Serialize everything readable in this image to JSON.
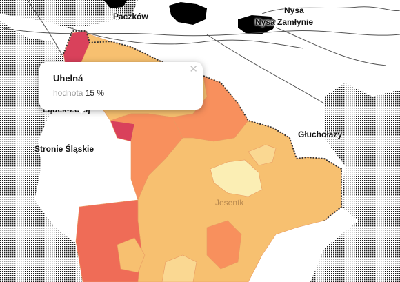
{
  "map": {
    "colors": {
      "land": "#ffffff",
      "hatch": "#1c1c1c",
      "water": "#000000",
      "low": "#fbeeb4",
      "medium_low": "#fad892",
      "medium": "#f7c070",
      "medium_high": "#f8905d",
      "high": "#ef6c57",
      "very_high": "#d9415b",
      "border": "#333333"
    },
    "places": [
      {
        "name": "Paczków",
        "kind": "city"
      },
      {
        "name": "Nysa",
        "kind": "city"
      },
      {
        "name": "Nysa Zamłynie",
        "kind": "city"
      },
      {
        "name": "Lądek-Zdrój",
        "kind": "city"
      },
      {
        "name": "Stronie Śląskie",
        "kind": "city"
      },
      {
        "name": "Głuchołazy",
        "kind": "city"
      },
      {
        "name": "Jeseník",
        "kind": "town"
      }
    ]
  },
  "popup": {
    "title": "Uhelná",
    "key": "hodnota",
    "value": "15 %",
    "close_icon": "✕"
  }
}
